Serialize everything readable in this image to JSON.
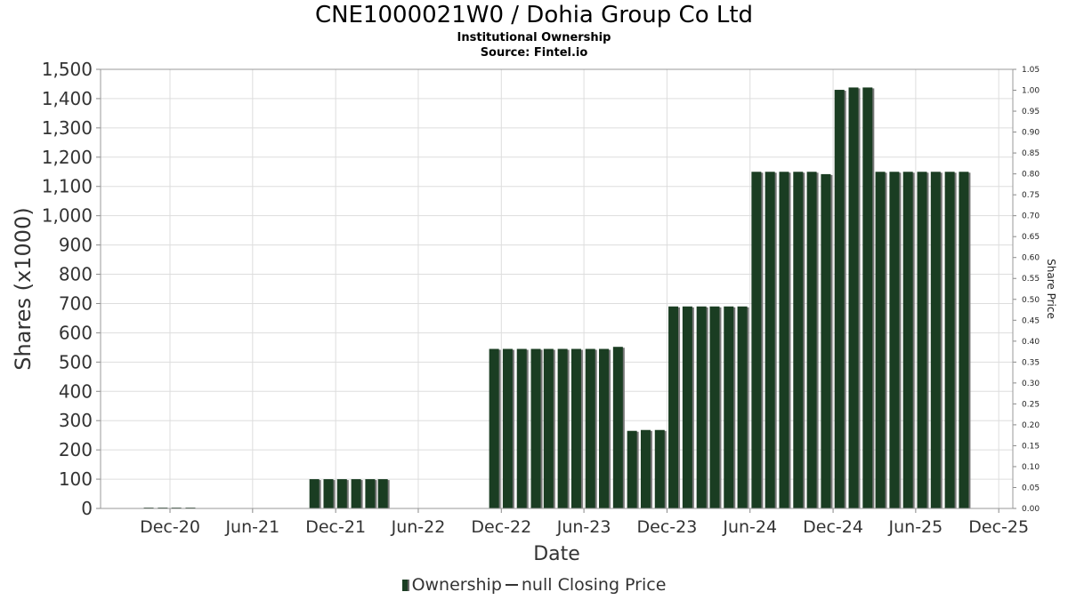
{
  "chart_data": {
    "type": "bar",
    "title": "CNE1000021W0 / Dohia Group Co Ltd",
    "subtitles": [
      "Institutional Ownership",
      "Source: Fintel.io"
    ],
    "xlabel": "Date",
    "ylabel": "Shares (x1000)",
    "y2label": "Share Price",
    "ylim": [
      0,
      1500
    ],
    "y2lim": [
      0,
      1.05
    ],
    "y_ticks": [
      "0",
      "100",
      "200",
      "300",
      "400",
      "500",
      "600",
      "700",
      "800",
      "900",
      "1,000",
      "1,100",
      "1,200",
      "1,300",
      "1,400",
      "1,500"
    ],
    "y2_ticks": [
      "0.00",
      "0.05",
      "0.10",
      "0.15",
      "0.20",
      "0.25",
      "0.30",
      "0.35",
      "0.40",
      "0.45",
      "0.50",
      "0.55",
      "0.60",
      "0.65",
      "0.70",
      "0.75",
      "0.80",
      "0.85",
      "0.90",
      "0.95",
      "1.00",
      "1.05"
    ],
    "x_ticks": [
      {
        "label": "Dec-20",
        "date": "2020-12-01"
      },
      {
        "label": "Jun-21",
        "date": "2021-06-01"
      },
      {
        "label": "Dec-21",
        "date": "2021-12-01"
      },
      {
        "label": "Jun-22",
        "date": "2022-06-01"
      },
      {
        "label": "Dec-22",
        "date": "2022-12-01"
      },
      {
        "label": "Jun-23",
        "date": "2023-06-01"
      },
      {
        "label": "Dec-23",
        "date": "2023-12-01"
      },
      {
        "label": "Jun-24",
        "date": "2024-06-01"
      },
      {
        "label": "Dec-24",
        "date": "2024-12-01"
      },
      {
        "label": "Jun-25",
        "date": "2025-06-01"
      },
      {
        "label": "Dec-25",
        "date": "2025-12-01"
      }
    ],
    "x_range": [
      "2020-07-01",
      "2026-01-01"
    ],
    "grid": true,
    "legend_position": "bottom",
    "series": [
      {
        "name": "Ownership",
        "color": "#1a3d22",
        "points": [
          {
            "date": "2020-10-15",
            "value": 3
          },
          {
            "date": "2020-11-15",
            "value": 3
          },
          {
            "date": "2020-12-15",
            "value": 3
          },
          {
            "date": "2021-01-15",
            "value": 3
          },
          {
            "date": "2021-10-15",
            "value": 100
          },
          {
            "date": "2021-11-15",
            "value": 100
          },
          {
            "date": "2021-12-15",
            "value": 100
          },
          {
            "date": "2022-01-15",
            "value": 100
          },
          {
            "date": "2022-02-15",
            "value": 100
          },
          {
            "date": "2022-03-15",
            "value": 100
          },
          {
            "date": "2022-11-15",
            "value": 545
          },
          {
            "date": "2022-12-15",
            "value": 545
          },
          {
            "date": "2023-01-15",
            "value": 545
          },
          {
            "date": "2023-02-15",
            "value": 545
          },
          {
            "date": "2023-03-15",
            "value": 545
          },
          {
            "date": "2023-04-15",
            "value": 545
          },
          {
            "date": "2023-05-15",
            "value": 545
          },
          {
            "date": "2023-06-15",
            "value": 545
          },
          {
            "date": "2023-07-15",
            "value": 545
          },
          {
            "date": "2023-08-15",
            "value": 552
          },
          {
            "date": "2023-09-15",
            "value": 265
          },
          {
            "date": "2023-10-15",
            "value": 268
          },
          {
            "date": "2023-11-15",
            "value": 268
          },
          {
            "date": "2023-12-15",
            "value": 690
          },
          {
            "date": "2024-01-15",
            "value": 690
          },
          {
            "date": "2024-02-15",
            "value": 690
          },
          {
            "date": "2024-03-15",
            "value": 690
          },
          {
            "date": "2024-04-15",
            "value": 690
          },
          {
            "date": "2024-05-15",
            "value": 690
          },
          {
            "date": "2024-06-15",
            "value": 1150
          },
          {
            "date": "2024-07-15",
            "value": 1150
          },
          {
            "date": "2024-08-15",
            "value": 1150
          },
          {
            "date": "2024-09-15",
            "value": 1150
          },
          {
            "date": "2024-10-15",
            "value": 1150
          },
          {
            "date": "2024-11-15",
            "value": 1142
          },
          {
            "date": "2024-12-15",
            "value": 1430
          },
          {
            "date": "2025-01-15",
            "value": 1438
          },
          {
            "date": "2025-02-15",
            "value": 1438
          },
          {
            "date": "2025-03-15",
            "value": 1150
          },
          {
            "date": "2025-04-15",
            "value": 1150
          },
          {
            "date": "2025-05-15",
            "value": 1150
          },
          {
            "date": "2025-06-15",
            "value": 1150
          },
          {
            "date": "2025-07-15",
            "value": 1150
          },
          {
            "date": "2025-08-15",
            "value": 1150
          },
          {
            "date": "2025-09-15",
            "value": 1150
          }
        ]
      }
    ],
    "legend": [
      {
        "marker": "bar",
        "label": "Ownership",
        "color": "#1a3d22"
      },
      {
        "marker": "line",
        "label": "null Closing Price",
        "color": "#333333"
      }
    ]
  }
}
